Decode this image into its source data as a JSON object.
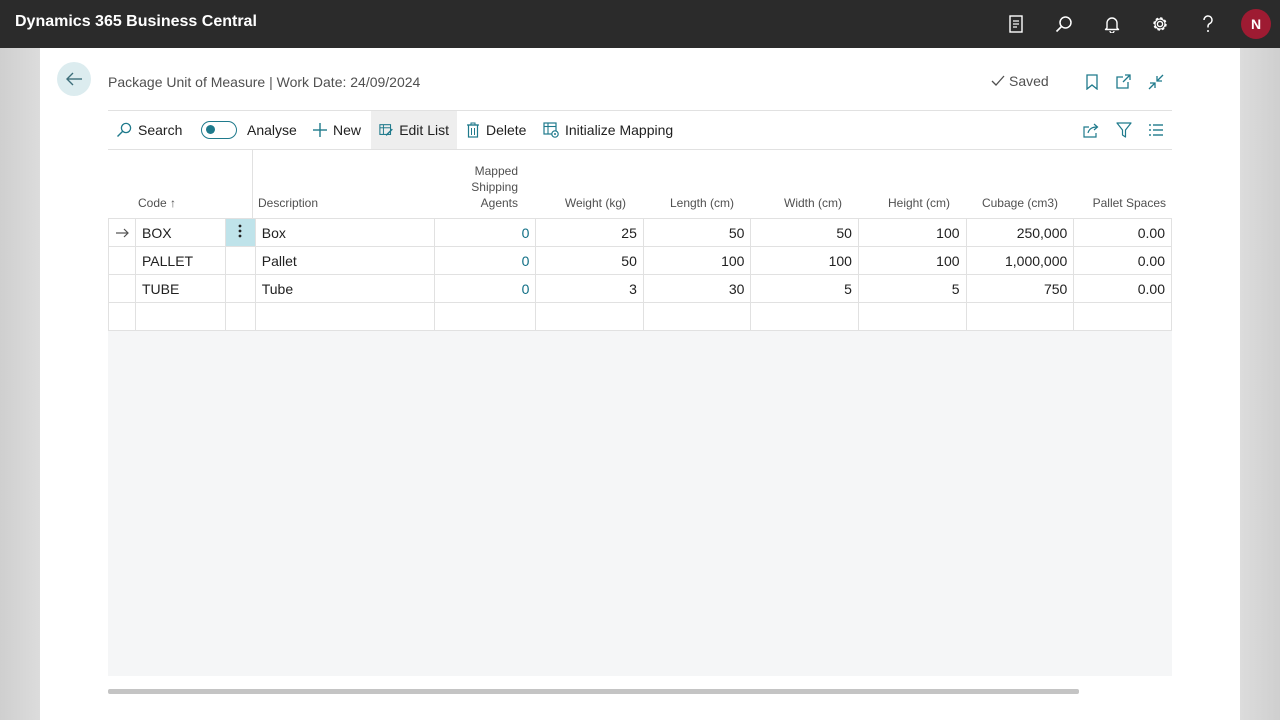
{
  "app": {
    "title": "Dynamics 365 Business Central",
    "user_initial": "N"
  },
  "topbar_icons": [
    "document-icon",
    "search-icon",
    "bell-icon",
    "gear-icon",
    "help-icon"
  ],
  "page": {
    "title": "Package Unit of Measure | Work Date: 24/09/2024",
    "saved_label": "Saved"
  },
  "actions": {
    "search": "Search",
    "analyse": "Analyse",
    "new": "New",
    "edit_list": "Edit List",
    "delete": "Delete",
    "initialize_mapping": "Initialize Mapping"
  },
  "columns": {
    "code": "Code ↑",
    "description": "Description",
    "mapped_1": "Mapped",
    "mapped_2": "Shipping",
    "mapped_3": "Agents",
    "weight": "Weight (kg)",
    "length": "Length (cm)",
    "width": "Width (cm)",
    "height": "Height (cm)",
    "cubage": "Cubage (cm3)",
    "pallet": "Pallet Spaces"
  },
  "rows": [
    {
      "code": "BOX",
      "description": "Box",
      "mapped": "0",
      "weight": "25",
      "length": "50",
      "width": "50",
      "height": "100",
      "cubage": "250,000",
      "pallet": "0.00"
    },
    {
      "code": "PALLET",
      "description": "Pallet",
      "mapped": "0",
      "weight": "50",
      "length": "100",
      "width": "100",
      "height": "100",
      "cubage": "1,000,000",
      "pallet": "0.00"
    },
    {
      "code": "TUBE",
      "description": "Tube",
      "mapped": "0",
      "weight": "3",
      "length": "30",
      "width": "5",
      "height": "5",
      "cubage": "750",
      "pallet": "0.00"
    }
  ],
  "colors": {
    "topbar": "#2b2b2b",
    "accent": "#1f7a8c",
    "link": "#0f6e85",
    "avatar": "#9e1b32"
  }
}
